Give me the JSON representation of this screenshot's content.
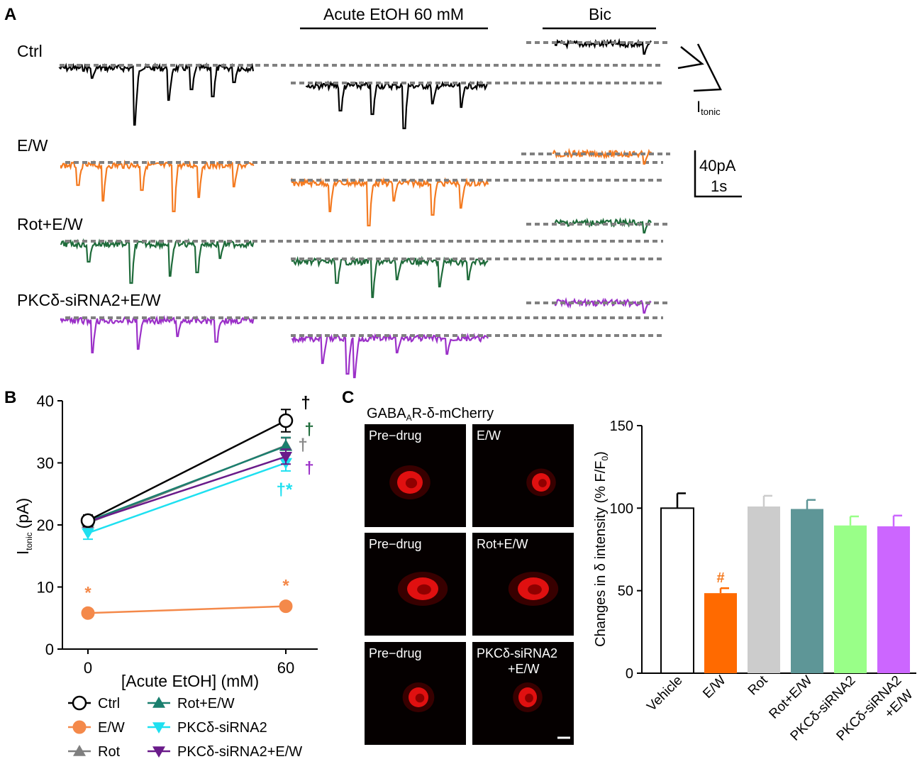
{
  "panels": {
    "a": "A",
    "b": "B",
    "c": "C"
  },
  "panel_a": {
    "conditions": [
      "Ctrl",
      "E/W",
      "Rot+E/W",
      "PKCδ-siRNA2+E/W"
    ],
    "colors": [
      "#000000",
      "#f47a20",
      "#1e6b3a",
      "#9b30c8"
    ],
    "acute_label": "Acute EtOH 60 mM",
    "bic_label": "Bic",
    "itonic_main": "I",
    "itonic_sub": "tonic",
    "scale_amplitude": "40pA",
    "scale_time": "1s"
  },
  "panel_c": {
    "stain_label_pre": "GABA",
    "stain_label_sub": "A",
    "stain_label_post": "R-δ-mCherry",
    "tiles": [
      {
        "label": "Pre−drug"
      },
      {
        "label": "E/W"
      },
      {
        "label": "Pre−drug"
      },
      {
        "label": "Rot+E/W"
      },
      {
        "label": "Pre−drug"
      },
      {
        "label": "PKCδ-siRNA2"
      },
      {
        "label": "+E/W"
      }
    ]
  },
  "chart_data": [
    {
      "type": "line",
      "xlabel": "[Acute EtOH] (mM)",
      "ylabel_main": "I",
      "ylabel_sub": "tonic",
      "ylabel_unit": "(pA)",
      "x": [
        0,
        60
      ],
      "x_ticks": [
        "0",
        "60"
      ],
      "ylim": [
        0,
        40
      ],
      "y_ticks": [
        "0",
        "10",
        "20",
        "30",
        "40"
      ],
      "series": [
        {
          "name": "Ctrl",
          "color": "#000000",
          "marker": "circle-open",
          "values": [
            20.7,
            36.8
          ],
          "err": [
            0.9,
            1.8
          ]
        },
        {
          "name": "E/W",
          "color": "#f4894a",
          "marker": "circle",
          "values": [
            5.8,
            6.9
          ],
          "err": [
            0.5,
            0.5
          ]
        },
        {
          "name": "Rot",
          "color": "#7f7f7f",
          "marker": "triangle-up",
          "values": [
            20.3,
            32.8
          ],
          "err": [
            0.8,
            1.2
          ]
        },
        {
          "name": "Rot+E/W",
          "color": "#1a7f6e",
          "marker": "triangle-up",
          "values": [
            20.6,
            32.7
          ],
          "err": [
            0.8,
            1.4
          ]
        },
        {
          "name": "PKCδ-siRNA2",
          "color": "#1ee0f0",
          "marker": "triangle-down",
          "values": [
            18.7,
            30.0
          ],
          "err": [
            1.0,
            1.3
          ]
        },
        {
          "name": "PKCδ-siRNA2+E/W",
          "color": "#6a1b8a",
          "marker": "triangle-down",
          "values": [
            20.5,
            31.0
          ],
          "err": [
            0.8,
            1.2
          ]
        }
      ],
      "annotations": [
        {
          "text": "*",
          "color": "#f4894a",
          "x": 0,
          "y": 8.2
        },
        {
          "text": "*",
          "color": "#f4894a",
          "x": 60,
          "y": 9.3
        },
        {
          "text": "†",
          "color": "#000000",
          "x": 60,
          "y": 38.8
        },
        {
          "text": "†",
          "color": "#1e6b3a",
          "x": 60,
          "y": 34.5
        },
        {
          "text": "†",
          "color": "#888888",
          "x": 60,
          "y": 32.0
        },
        {
          "text": "†",
          "color": "#9b30c8",
          "x": 60,
          "y": 28.3
        },
        {
          "text": "†*",
          "color": "#1ee0f0",
          "x": 60,
          "y": 24.8
        }
      ]
    },
    {
      "type": "bar",
      "ylabel": "Changes in δ intensity (% F/F",
      "ylabel_sub": "0",
      "ylabel_close": ")",
      "ylim": [
        0,
        150
      ],
      "y_ticks": [
        "0",
        "50",
        "100",
        "150"
      ],
      "categories": [
        "Vehicle",
        "E/W",
        "Rot",
        "Rot+E/W",
        "PKCδ-siRNA2",
        "PKCδ-siRNA2",
        "+E/W"
      ],
      "bars": [
        {
          "label": "Vehicle",
          "value": 100,
          "err": 9,
          "color": "#ffffff"
        },
        {
          "label": "E/W",
          "value": 48.5,
          "err": 3,
          "color": "#ff6a00"
        },
        {
          "label": "Rot",
          "value": 101,
          "err": 6.5,
          "color": "#cccccc"
        },
        {
          "label": "Rot+E/W",
          "value": 99.5,
          "err": 5.5,
          "color": "#5e9697"
        },
        {
          "label": "PKCδ-siRNA2",
          "value": 89.5,
          "err": 5.5,
          "color": "#99ff88"
        },
        {
          "label": "PKCδ-siRNA2+E/W",
          "value": 89,
          "err": 6.5,
          "color": "#cc66ff"
        }
      ],
      "annotations": [
        {
          "text": "#",
          "color": "#f47a20",
          "bar": 1
        }
      ]
    }
  ]
}
